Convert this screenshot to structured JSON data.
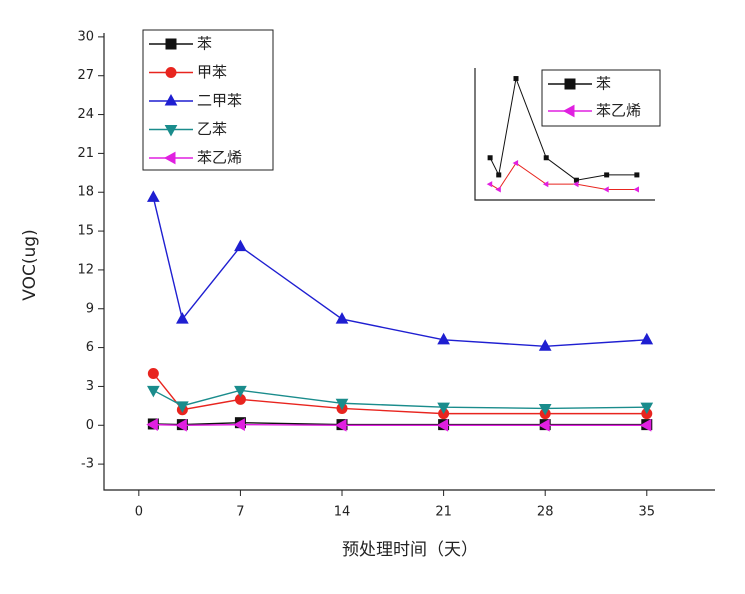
{
  "chart_data": [
    {
      "type": "line",
      "x_label": "预处理时间（天）",
      "y_label": "VOC(ug)",
      "x": [
        1,
        3,
        7,
        14,
        21,
        28,
        35
      ],
      "xlim": [
        -2.4,
        39.7
      ],
      "xticks": [
        0,
        7,
        14,
        21,
        28,
        35
      ],
      "ylim": [
        -5,
        30.3
      ],
      "yticks": [
        -3,
        0,
        3,
        6,
        9,
        12,
        15,
        18,
        21,
        24,
        27,
        30
      ],
      "legend": "upper left",
      "series": [
        {
          "name": "苯",
          "color": "#111111",
          "marker": "square",
          "values": [
            0.1,
            0.05,
            0.2,
            0.05,
            0.05,
            0.05,
            0.05
          ]
        },
        {
          "name": "甲苯",
          "color": "#e8251f",
          "marker": "circle",
          "values": [
            4.0,
            1.2,
            2.0,
            1.3,
            0.9,
            0.9,
            0.9
          ]
        },
        {
          "name": "二甲苯",
          "color": "#1f1fd1",
          "marker": "triangle-up",
          "values": [
            17.6,
            8.2,
            13.8,
            8.2,
            6.6,
            6.1,
            6.6
          ]
        },
        {
          "name": "乙苯",
          "color": "#1a8c8c",
          "marker": "triangle-down",
          "values": [
            2.7,
            1.5,
            2.7,
            1.7,
            1.4,
            1.3,
            1.4
          ]
        },
        {
          "name": "苯乙烯",
          "color": "#e020e0",
          "marker": "triangle-left",
          "values": [
            0.05,
            0.0,
            0.05,
            0.0,
            0.0,
            0.0,
            0.0
          ]
        }
      ]
    },
    {
      "type": "line",
      "x": [
        1,
        3,
        7,
        14,
        21,
        28,
        35
      ],
      "xlim": [
        -2.5,
        39.2
      ],
      "ylim": [
        0,
        0.1
      ],
      "legend": "upper right",
      "series": [
        {
          "name": "苯",
          "color": "#111111",
          "marker_color": "#111111",
          "marker": "square",
          "values": [
            0.032,
            0.019,
            0.092,
            0.032,
            0.015,
            0.019,
            0.019
          ]
        },
        {
          "name": "苯乙烯",
          "color": "#e8251f",
          "marker_color": "#e020e0",
          "marker": "triangle-left",
          "values": [
            0.012,
            0.008,
            0.028,
            0.012,
            0.012,
            0.008,
            0.008
          ]
        }
      ]
    }
  ]
}
